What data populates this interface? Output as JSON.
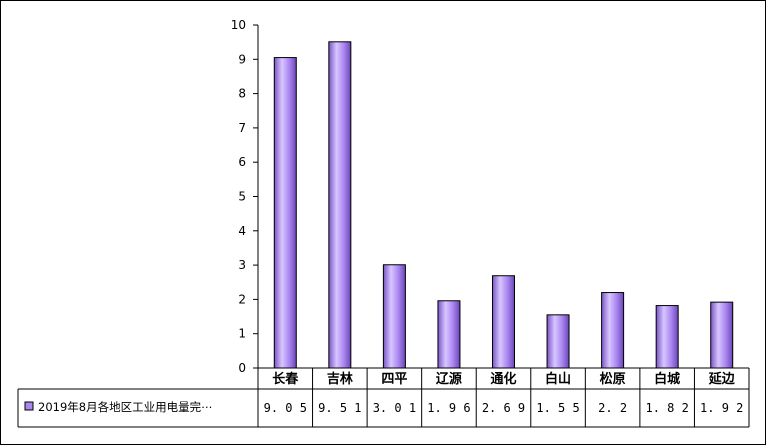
{
  "chart_data": {
    "type": "bar",
    "categories": [
      "长春",
      "吉林",
      "四平",
      "辽源",
      "通化",
      "白山",
      "松原",
      "白城",
      "延边"
    ],
    "series": [
      {
        "name": "2019年8月各地区工业用电量完⋯",
        "values": [
          9.05,
          9.51,
          3.01,
          1.96,
          2.69,
          1.55,
          2.2,
          1.82,
          1.92
        ],
        "value_labels": [
          "9.05",
          "9.51",
          "3.01",
          "1.96",
          "2.69",
          "1.55",
          "2.2",
          "1.82",
          "1.92"
        ],
        "color": "#aa88ee"
      }
    ],
    "y_ticks": [
      "0",
      "1",
      "2",
      "3",
      "4",
      "5",
      "6",
      "7",
      "8",
      "9",
      "10"
    ],
    "ylim": [
      0,
      10
    ],
    "grid": false,
    "legend": "data-table-below"
  }
}
